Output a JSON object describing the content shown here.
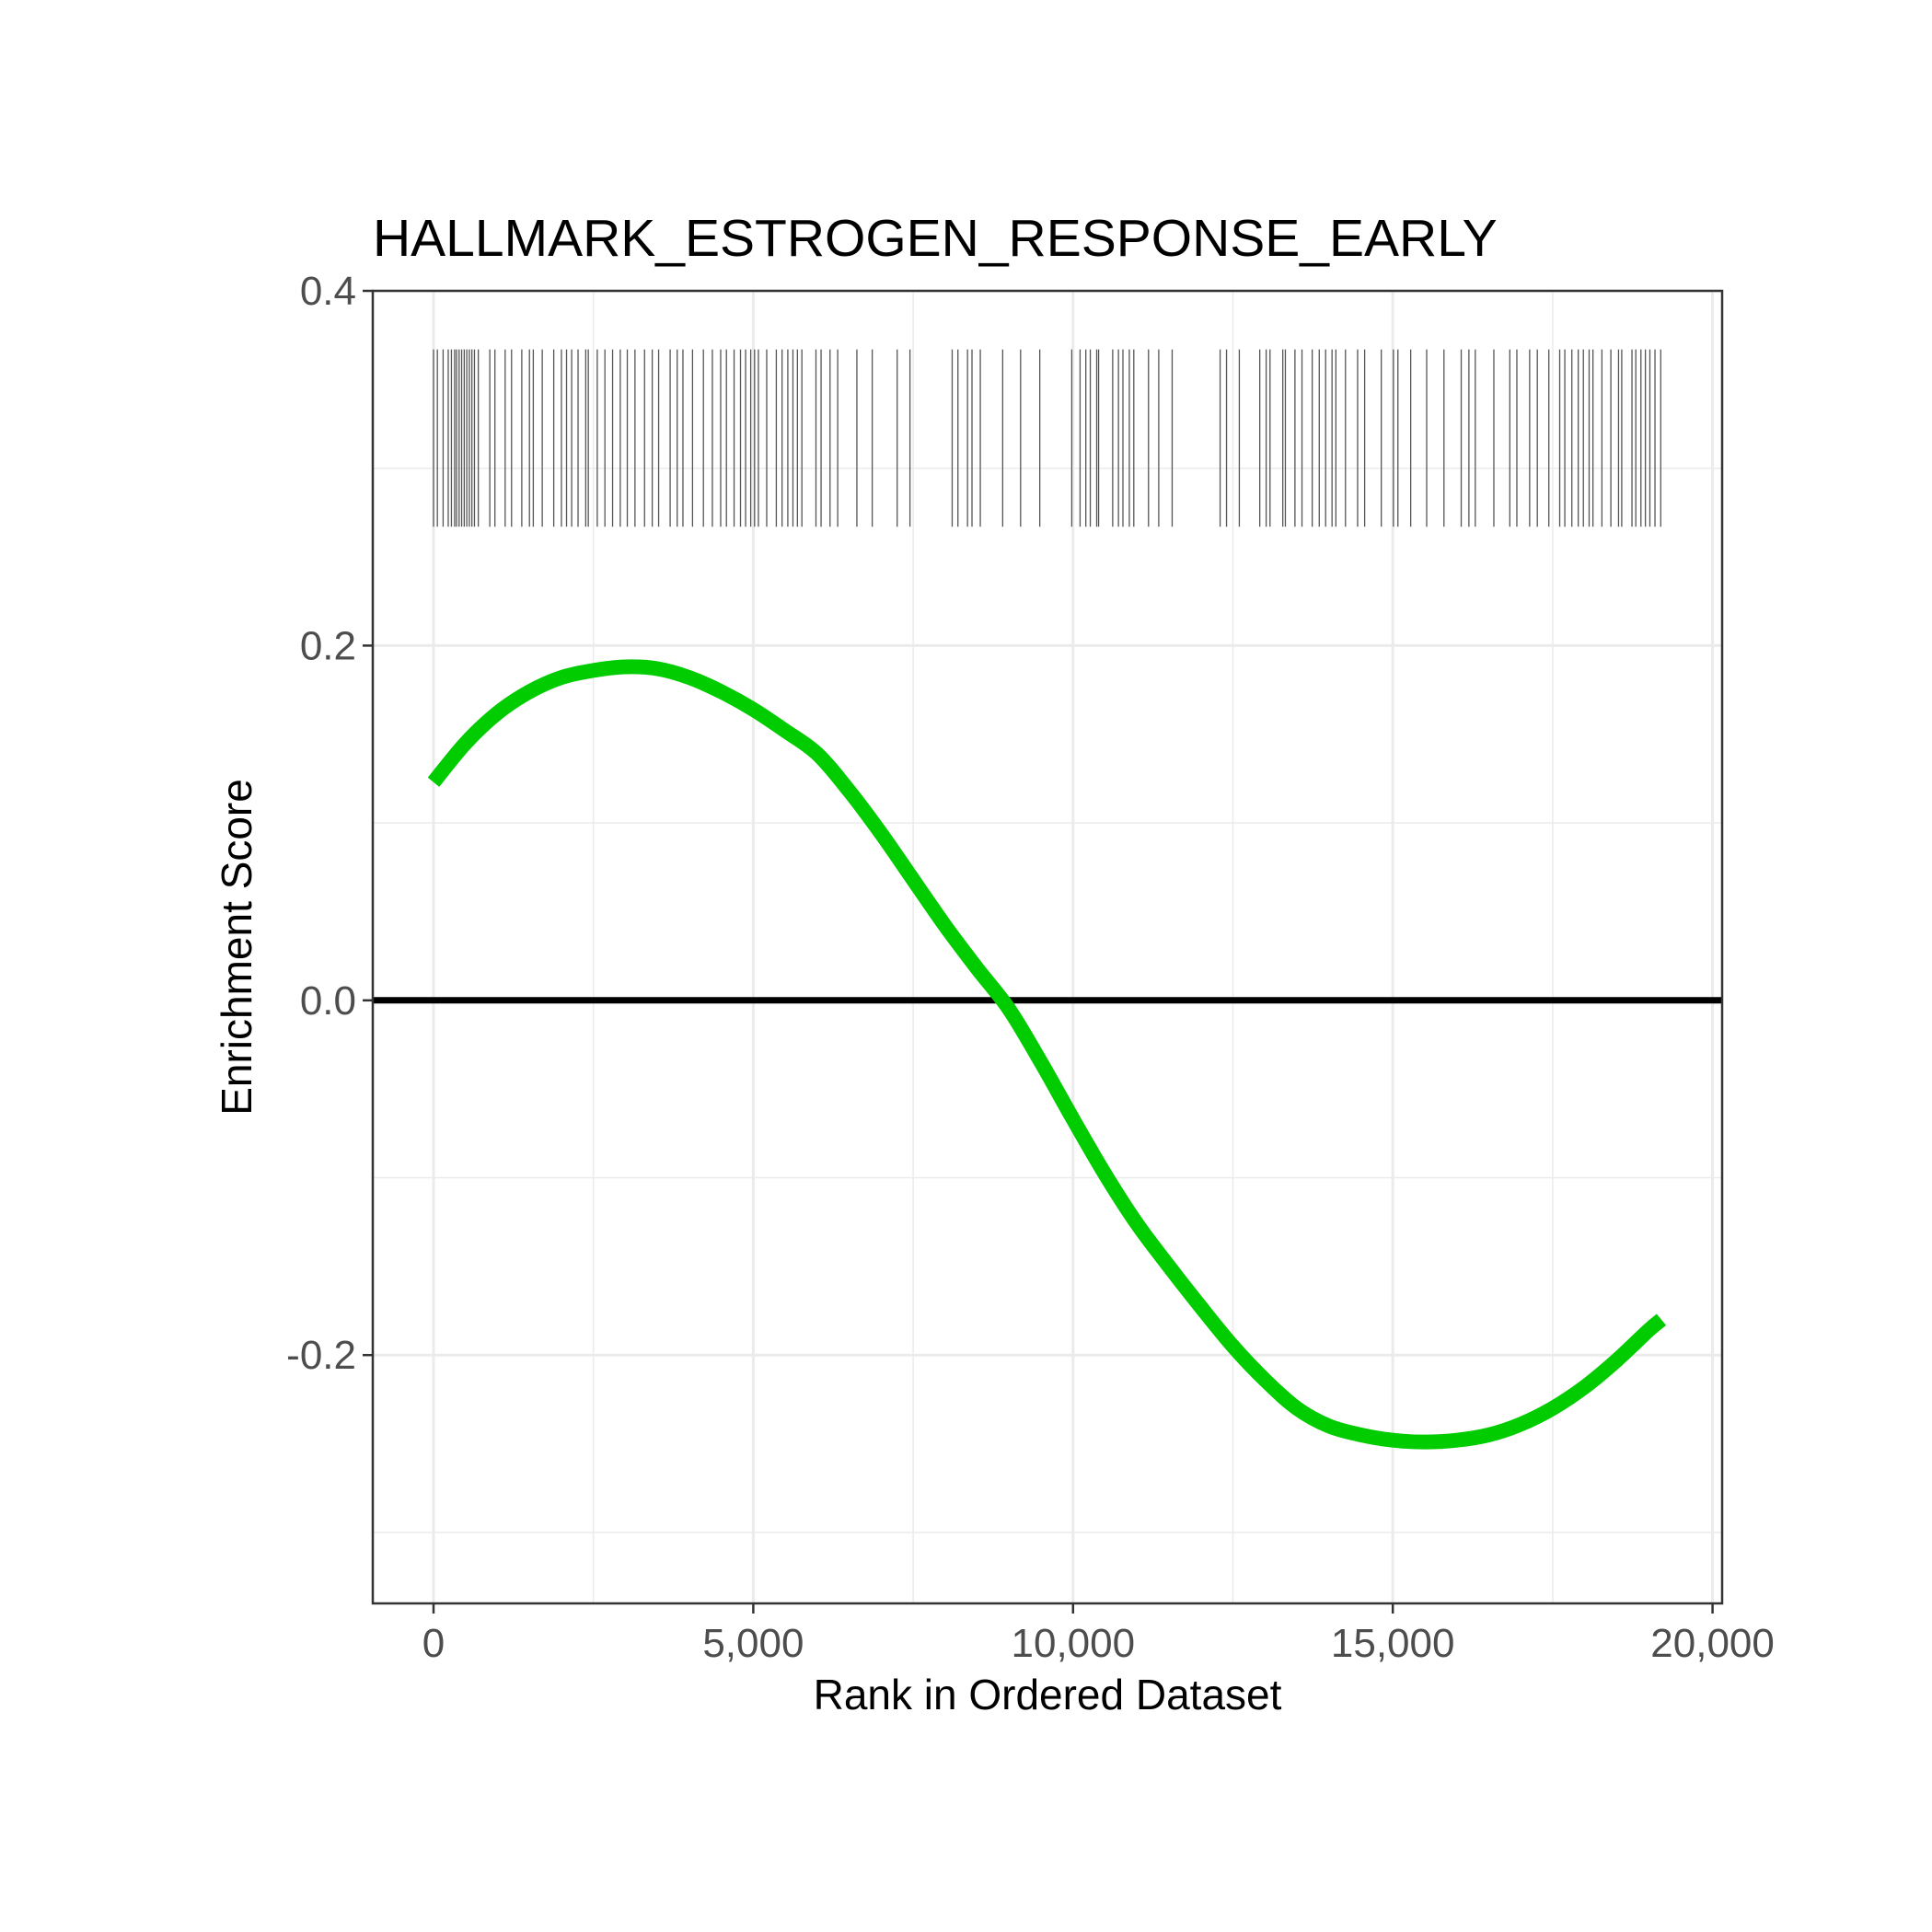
{
  "chart_data": {
    "type": "line",
    "title": "HALLMARK_ESTROGEN_RESPONSE_EARLY",
    "xlabel": "Rank in Ordered Dataset",
    "ylabel": "Enrichment Score",
    "xlim": [
      -950,
      20150
    ],
    "ylim": [
      -0.34,
      0.4
    ],
    "x_ticks": [
      0,
      5000,
      10000,
      15000,
      20000
    ],
    "x_tick_labels": [
      "0",
      "5,000",
      "10,000",
      "15,000",
      "20,000"
    ],
    "y_ticks": [
      -0.2,
      0.0,
      0.2,
      0.4
    ],
    "y_tick_labels": [
      "-0.2",
      "0.0",
      "0.2",
      "0.4"
    ],
    "grid": true,
    "reference_line_y": 0,
    "series": [
      {
        "color": "#00cc00",
        "x": [
          0,
          500,
          1000,
          1500,
          2000,
          2500,
          3000,
          3500,
          4000,
          4500,
          5000,
          5500,
          6000,
          6500,
          7000,
          7500,
          8000,
          8500,
          9000,
          9500,
          10000,
          10500,
          11000,
          11500,
          12000,
          12500,
          13000,
          13500,
          14000,
          14500,
          15000,
          15500,
          16000,
          16500,
          17000,
          17500,
          18000,
          18500,
          19000,
          19200
        ],
        "y": [
          0.123,
          0.145,
          0.162,
          0.174,
          0.182,
          0.186,
          0.188,
          0.187,
          0.182,
          0.174,
          0.164,
          0.152,
          0.139,
          0.118,
          0.094,
          0.068,
          0.042,
          0.018,
          -0.005,
          -0.035,
          -0.067,
          -0.098,
          -0.126,
          -0.15,
          -0.173,
          -0.195,
          -0.214,
          -0.23,
          -0.24,
          -0.245,
          -0.248,
          -0.249,
          -0.248,
          -0.245,
          -0.239,
          -0.23,
          -0.218,
          -0.203,
          -0.186,
          -0.18
        ]
      }
    ],
    "rug": {
      "y_range": [
        0.267,
        0.367
      ],
      "color": "#555555",
      "positions": [
        0,
        60,
        150,
        230,
        280,
        330,
        360,
        400,
        440,
        480,
        520,
        560,
        600,
        640,
        700,
        880,
        960,
        1120,
        1220,
        1380,
        1500,
        1560,
        1700,
        1880,
        2000,
        2080,
        2160,
        2260,
        2380,
        2420,
        2560,
        2680,
        2800,
        2920,
        3030,
        3150,
        3300,
        3420,
        3520,
        3700,
        3810,
        3900,
        4050,
        4220,
        4360,
        4490,
        4580,
        4700,
        4800,
        4880,
        4960,
        5020,
        5080,
        5210,
        5360,
        5450,
        5540,
        5620,
        5690,
        5760,
        5980,
        6060,
        6200,
        6320,
        6620,
        6860,
        7250,
        7450,
        8110,
        8200,
        8350,
        8420,
        8550,
        8900,
        9180,
        9480,
        9980,
        10110,
        10200,
        10270,
        10370,
        10400,
        10620,
        10710,
        10780,
        10880,
        10950,
        11180,
        11340,
        11550,
        12300,
        12400,
        12600,
        12920,
        13020,
        13080,
        13280,
        13320,
        13470,
        13580,
        13740,
        13850,
        13950,
        14050,
        14110,
        14260,
        14450,
        14560,
        14820,
        15010,
        15080,
        15280,
        15530,
        15800,
        16070,
        16190,
        16290,
        16580,
        16830,
        16940,
        17140,
        17260,
        17440,
        17610,
        17690,
        17800,
        17900,
        17980,
        18070,
        18130,
        18270,
        18410,
        18530,
        18580,
        18740,
        18800,
        18880,
        18950,
        19020,
        19100,
        19190
      ]
    }
  }
}
